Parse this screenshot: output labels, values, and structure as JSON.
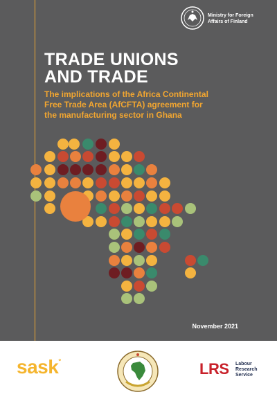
{
  "ministry": {
    "name": "Ministry for Foreign Affairs of Finland",
    "line1": "Ministry for Foreign",
    "line2": "Affairs of Finland",
    "icon": "finland-ministry-seal-icon"
  },
  "cover": {
    "title_line1": "TRADE UNIONS",
    "title_line2": "AND TRADE",
    "subtitle_line1": "The implications of the Africa Continental",
    "subtitle_line2": "Free Trade Area (AfCFTA) agreement for",
    "subtitle_line3": "the manufacturing sector in Ghana",
    "date": "November 2021",
    "background_color": "#5b5b5c",
    "accent_color": "#f2a630",
    "dot_palette": {
      "yellow": "#f4b340",
      "orange": "#e9813e",
      "red": "#c94a32",
      "maroon": "#6e1d22",
      "green": "#3a8a6c",
      "lime": "#a9c27a"
    }
  },
  "footer": {
    "sask_logo": "sask",
    "sask_mark": "°",
    "emblem_text_top": "COMMUNITY OF AFRICA",
    "emblem_icon": "africa-emblem-icon",
    "lrs_logo": "LRS",
    "lrs_line1": "Labour",
    "lrs_line2": "Research",
    "lrs_line3": "Service"
  }
}
